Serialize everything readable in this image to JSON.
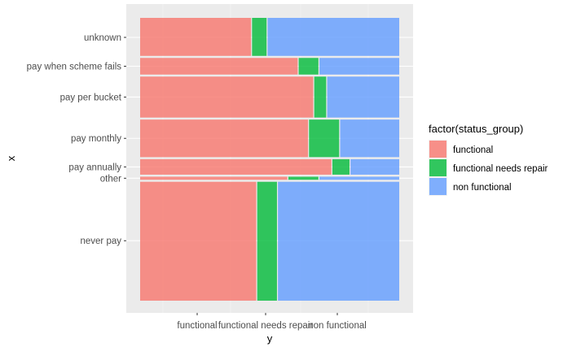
{
  "chart_data": {
    "type": "mosaic",
    "xlabel": "y",
    "ylabel": "x",
    "x_tick_labels": [
      "functional",
      "functional needs repair",
      "non functional"
    ],
    "legend": {
      "title": "factor(status_group)",
      "position": "right",
      "entries": [
        {
          "label": "functional",
          "color": "#F8766D"
        },
        {
          "label": "functional needs repair",
          "color": "#00BA38"
        },
        {
          "label": "non functional",
          "color": "#619CFF"
        }
      ]
    },
    "grid": true,
    "categories": [
      "unknown",
      "pay when scheme fails",
      "pay per bucket",
      "pay monthly",
      "pay annually",
      "other",
      "never pay"
    ],
    "row_share": [
      0.138,
      0.066,
      0.152,
      0.14,
      0.062,
      0.018,
      0.424
    ],
    "series": [
      {
        "name": "functional",
        "values": [
          0.43,
          0.61,
          0.67,
          0.65,
          0.74,
          0.57,
          0.45
        ]
      },
      {
        "name": "functional needs repair",
        "values": [
          0.06,
          0.08,
          0.05,
          0.12,
          0.07,
          0.12,
          0.08
        ]
      },
      {
        "name": "non functional",
        "values": [
          0.51,
          0.31,
          0.28,
          0.23,
          0.19,
          0.31,
          0.47
        ]
      }
    ]
  }
}
